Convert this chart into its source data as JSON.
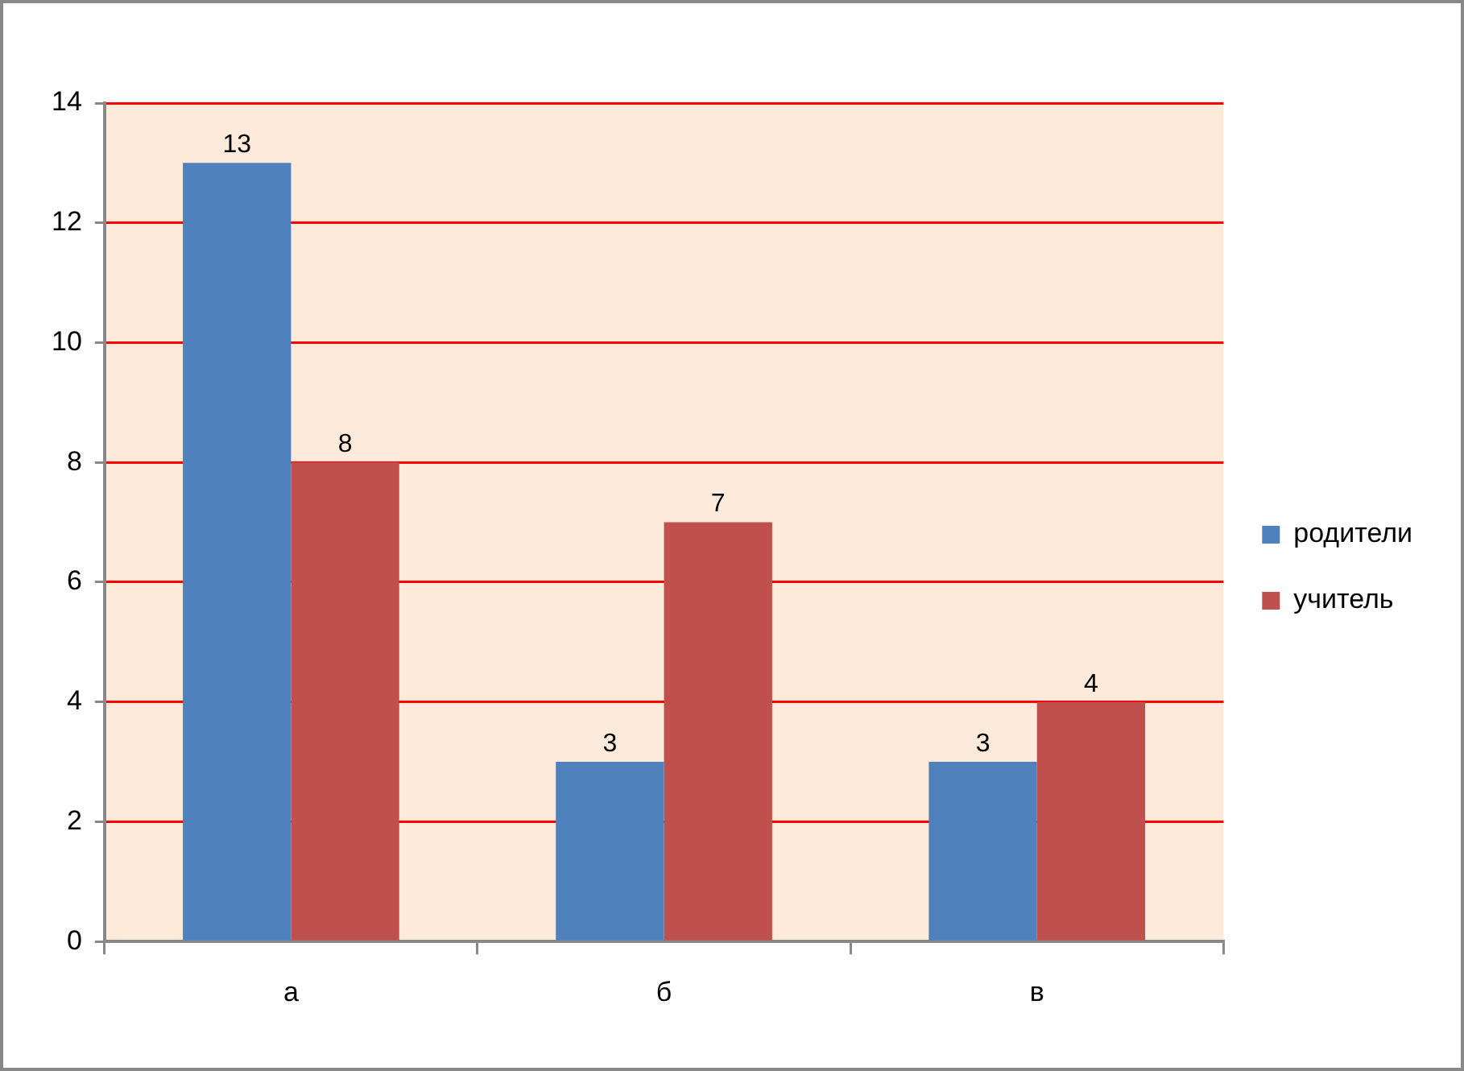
{
  "chart_data": {
    "type": "bar",
    "categories": [
      "а",
      "б",
      "в"
    ],
    "series": [
      {
        "name": "родители",
        "color": "#4f81bd",
        "values": [
          13,
          3,
          3
        ]
      },
      {
        "name": "учитель",
        "color": "#c0504d",
        "values": [
          8,
          7,
          4
        ]
      }
    ],
    "ylim": [
      0,
      14
    ],
    "yticks": [
      0,
      2,
      4,
      6,
      8,
      10,
      12,
      14
    ],
    "grid": "y",
    "legend": "right",
    "data_labels": true
  }
}
